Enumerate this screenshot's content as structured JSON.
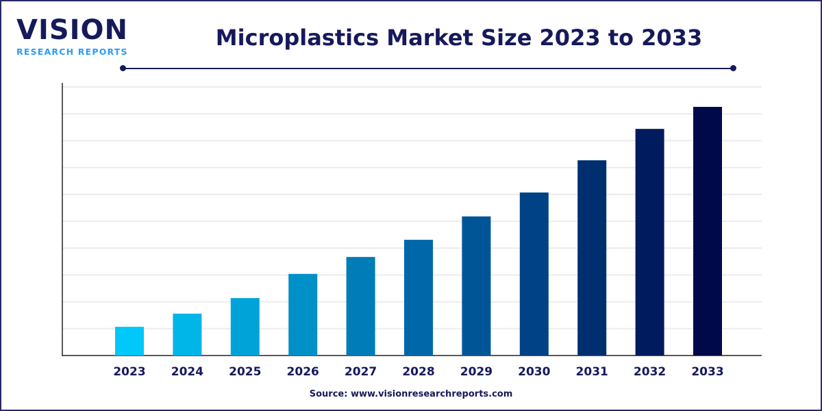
{
  "logo": {
    "main": "VISION",
    "sub": "RESEARCH REPORTS"
  },
  "source": "Source: www.visionresearchreports.com",
  "chart_data": {
    "type": "bar",
    "title": "Microplastics Market Size 2023 to 2033",
    "xlabel": "",
    "ylabel": "",
    "categories": [
      "2023",
      "2024",
      "2025",
      "2026",
      "2027",
      "2028",
      "2029",
      "2030",
      "2031",
      "2032",
      "2033"
    ],
    "values": [
      1.07,
      1.56,
      2.14,
      3.04,
      3.67,
      4.31,
      5.18,
      6.07,
      7.27,
      8.44,
      9.26
    ],
    "ylim": [
      0,
      10
    ],
    "grid": true,
    "y_tick_labels_shown": false,
    "bar_colors": [
      "#00c8f8",
      "#00b6e8",
      "#00a3d8",
      "#0090c8",
      "#007cb8",
      "#0068a8",
      "#005596",
      "#004286",
      "#002f70",
      "#001c5e",
      "#000a4a"
    ]
  }
}
